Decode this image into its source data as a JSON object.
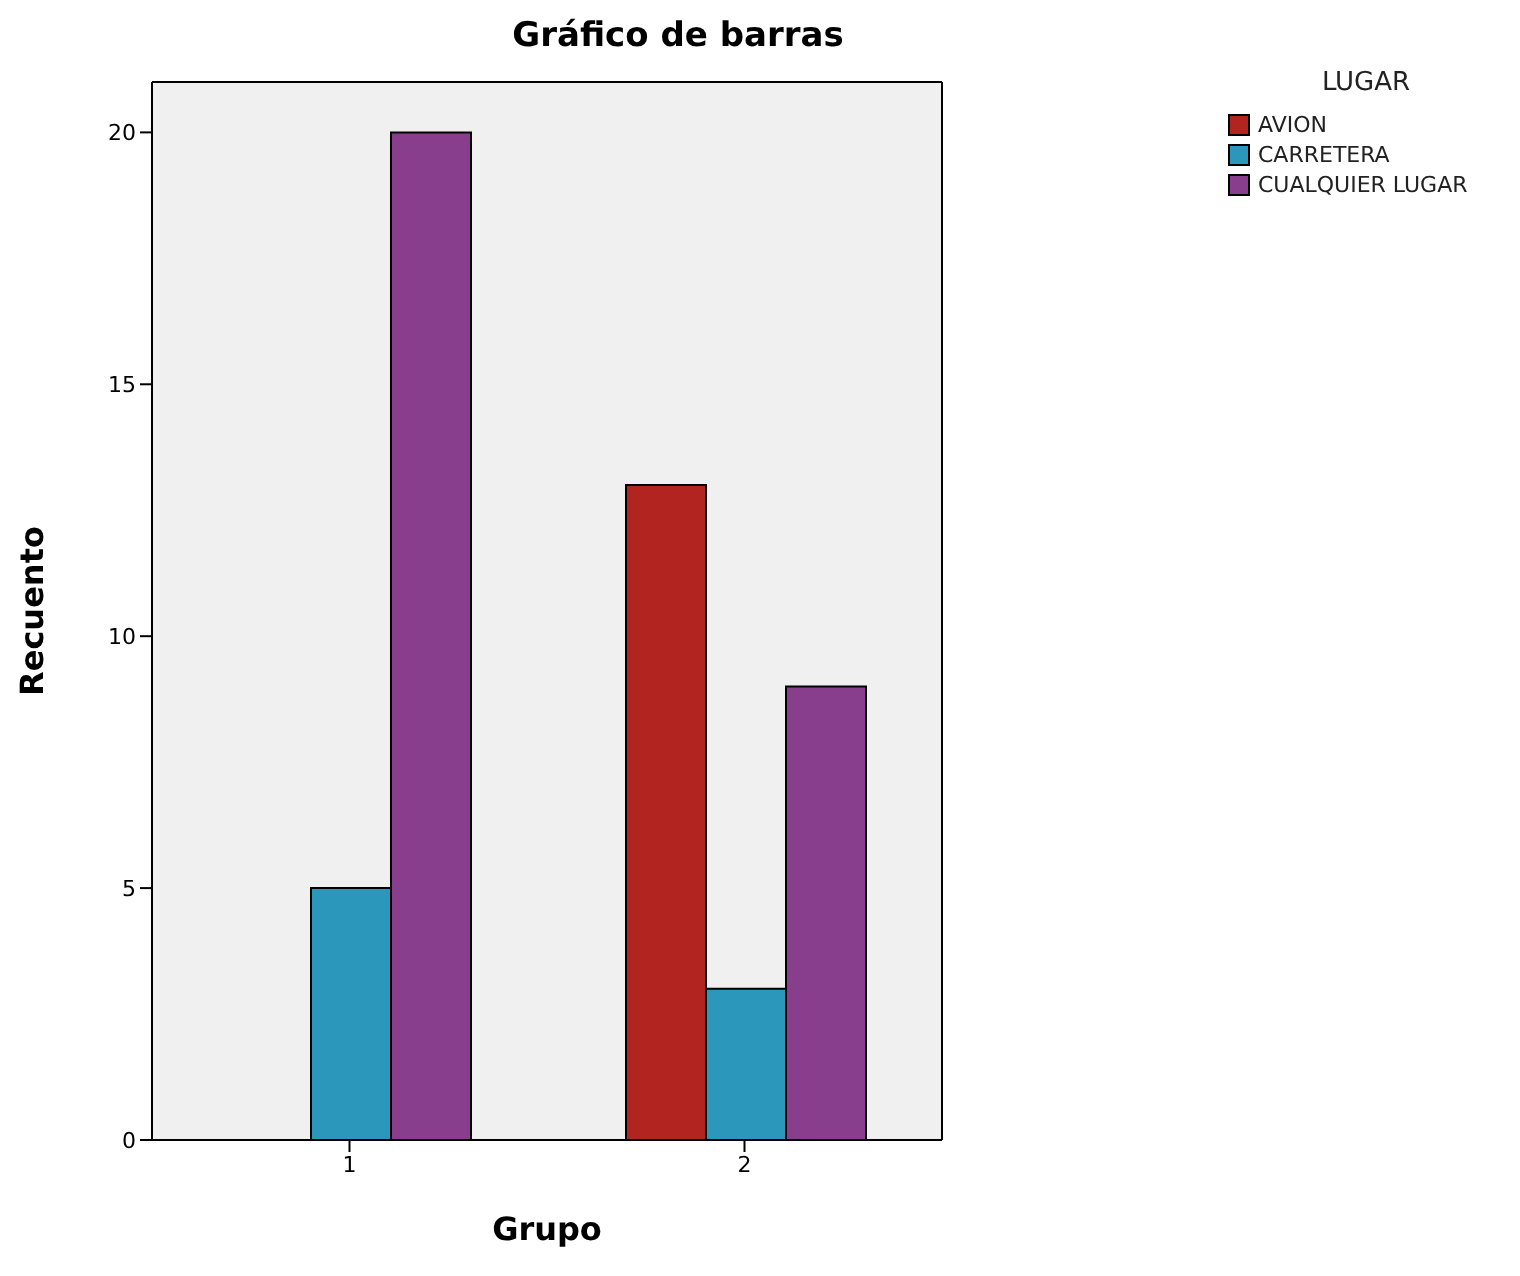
{
  "chart_data": {
    "type": "bar",
    "title": "Gráfico de barras",
    "xlabel": "Grupo",
    "ylabel": "Recuento",
    "legend_title": "LUGAR",
    "categories": [
      "1",
      "2"
    ],
    "series": [
      {
        "name": "AVION",
        "color": "#b2241f",
        "values": [
          null,
          13
        ]
      },
      {
        "name": "CARRETERA",
        "color": "#2a97bb",
        "values": [
          5,
          3
        ]
      },
      {
        "name": "CUALQUIER LUGAR",
        "color": "#883e8c",
        "values": [
          20,
          9
        ]
      }
    ],
    "ylim": [
      0,
      21
    ],
    "yticks": [
      0,
      5,
      10,
      15,
      20
    ],
    "legend": "top right"
  }
}
